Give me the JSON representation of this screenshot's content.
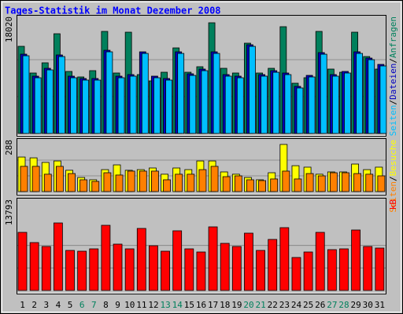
{
  "title": "Tages-Statistik im Monat Dezember 2008",
  "legend_separator": "/",
  "categories": [
    "1",
    "2",
    "3",
    "4",
    "5",
    "6",
    "7",
    "8",
    "9",
    "10",
    "11",
    "12",
    "13",
    "14",
    "15",
    "16",
    "17",
    "18",
    "19",
    "20",
    "21",
    "22",
    "23",
    "24",
    "25",
    "26",
    "27",
    "28",
    "29",
    "30",
    "31"
  ],
  "category_colors": [
    "#000000",
    "#000000",
    "#000000",
    "#000000",
    "#000000",
    "#00805c",
    "#00805c",
    "#000000",
    "#000000",
    "#000000",
    "#000000",
    "#000000",
    "#00805c",
    "#00805c",
    "#000000",
    "#000000",
    "#000000",
    "#000000",
    "#000000",
    "#00805c",
    "#00805c",
    "#000000",
    "#000000",
    "#000000",
    "#000000",
    "#000000",
    "#00805c",
    "#00805c",
    "#000000",
    "#000000",
    "#000000"
  ],
  "chart_data": [
    {
      "type": "bar",
      "ylim": [
        0,
        18020
      ],
      "yticks": [
        18020
      ],
      "series": [
        {
          "name": "Anfragen",
          "color": "#00805c",
          "values": [
            14186,
            9841,
            11502,
            16231,
            10096,
            9202,
            10224,
            16614,
            9841,
            16486,
            9585,
            8563,
            9968,
            13930,
            9968,
            10863,
            18020,
            10607,
            9841,
            14697,
            9841,
            10607,
            17381,
            8179,
            9074,
            16614,
            10480,
            9968,
            16486,
            12524,
            10480
          ]
        },
        {
          "name": "Dateien",
          "color": "#0000c0",
          "values": [
            12908,
            9329,
            10607,
            12780,
            9329,
            8946,
            8946,
            13547,
            9329,
            9585,
            13291,
            9329,
            8946,
            13291,
            9713,
            10480,
            13291,
            9585,
            9329,
            14441,
            9585,
            10224,
            9841,
            7668,
            9457,
            13163,
            9585,
            10096,
            13291,
            12269,
            11246
          ]
        },
        {
          "name": "Seiten",
          "color": "#00bfff",
          "values": [
            12650,
            9070,
            10350,
            12520,
            9070,
            8690,
            8690,
            13290,
            9070,
            9330,
            13030,
            9070,
            8690,
            13030,
            9450,
            10220,
            13030,
            9330,
            9070,
            14180,
            9330,
            9960,
            9580,
            7410,
            9200,
            12900,
            9330,
            9840,
            13030,
            12010,
            10990
          ]
        }
      ]
    },
    {
      "type": "bar",
      "ylim": [
        0,
        288
      ],
      "yticks": [
        288
      ],
      "series": [
        {
          "name": "Besuche",
          "color": "#ffff00",
          "values": [
            211,
            206,
            178,
            187,
            130,
            86,
            72,
            134,
            163,
            130,
            134,
            144,
            106,
            144,
            134,
            187,
            187,
            120,
            106,
            86,
            72,
            115,
            288,
            158,
            149,
            106,
            120,
            120,
            168,
            134,
            149
          ]
        },
        {
          "name": "Seiten",
          "color": "#ff8000",
          "values": [
            154,
            154,
            106,
            154,
            110,
            72,
            62,
            115,
            101,
            125,
            125,
            125,
            72,
            106,
            106,
            134,
            154,
            91,
            96,
            72,
            67,
            77,
            125,
            77,
            110,
            96,
            115,
            115,
            110,
            106,
            96
          ]
        }
      ]
    },
    {
      "type": "bar",
      "ylim": [
        0,
        13793
      ],
      "yticks": [
        13793
      ],
      "series": [
        {
          "name": "kB",
          "color": "#ff0000",
          "values": [
            11870,
            9784,
            8982,
            13793,
            8180,
            8020,
            8501,
            13313,
            9464,
            8501,
            12672,
            9143,
            8020,
            12190,
            8501,
            7860,
            12992,
            9624,
            8982,
            11709,
            8180,
            10426,
            12832,
            6737,
            7860,
            11870,
            8341,
            8501,
            12351,
            8982,
            8662
          ]
        }
      ]
    }
  ]
}
